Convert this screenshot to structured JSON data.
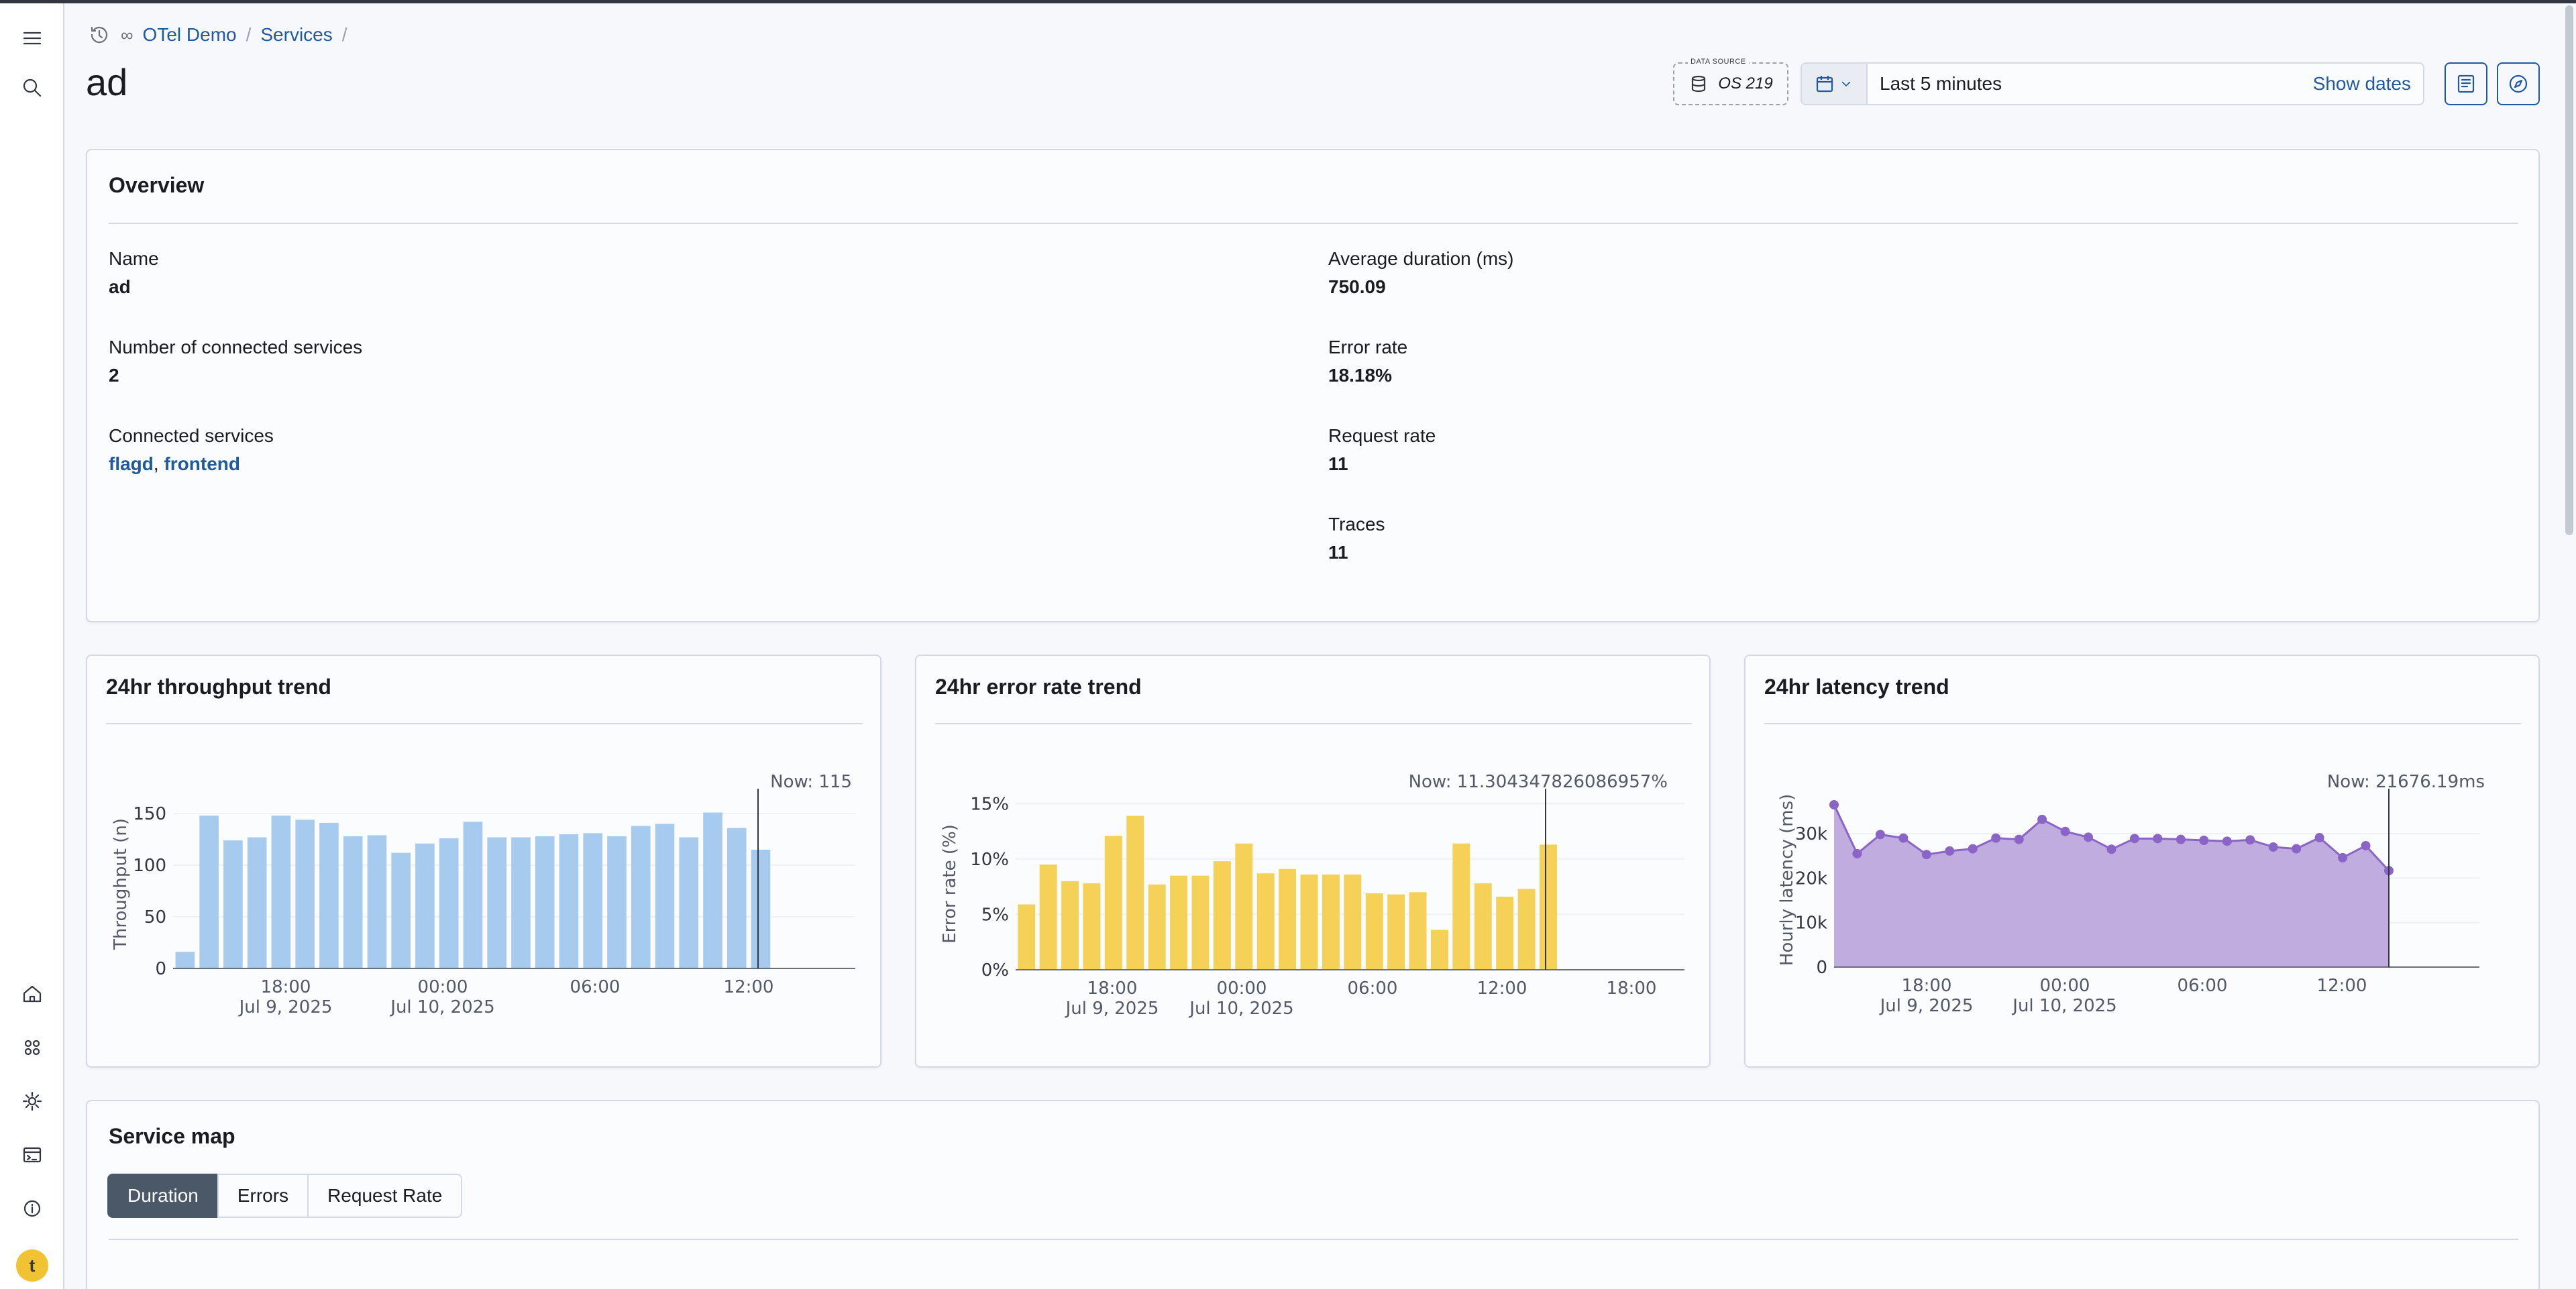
{
  "breadcrumbs": [
    "OTel Demo",
    "Services",
    "/"
  ],
  "page_title": "ad",
  "data_source": {
    "caption": "DATA SOURCE",
    "value": "OS 219"
  },
  "date": {
    "range_label": "Last 5 minutes",
    "show_dates_label": "Show dates"
  },
  "overview": {
    "title": "Overview",
    "left": [
      {
        "label": "Name",
        "value": "ad"
      },
      {
        "label": "Number of connected services",
        "value": "2"
      },
      {
        "label": "Connected services",
        "links": [
          "flagd",
          "frontend"
        ],
        "separator": ", "
      }
    ],
    "right": [
      {
        "label": "Average duration (ms)",
        "value": "750.09"
      },
      {
        "label": "Error rate",
        "value": "18.18%"
      },
      {
        "label": "Request rate",
        "value": "11"
      },
      {
        "label": "Traces",
        "value": "11"
      }
    ]
  },
  "charts": {
    "throughput_title": "24hr throughput trend",
    "error_title": "24hr error rate trend",
    "latency_title": "24hr latency trend"
  },
  "chart_data": [
    {
      "type": "bar",
      "title": "24hr throughput trend",
      "ylabel": "Throughput (n)",
      "ylim": [
        0,
        165
      ],
      "yticks": [
        "0",
        "50",
        "100",
        "150"
      ],
      "xticks": [
        "18:00",
        "00:00",
        "06:00",
        "12:00"
      ],
      "xticks_sub": [
        "Jul 9, 2025",
        "Jul 10, 2025",
        "",
        ""
      ],
      "annotation": "Now: 115",
      "color": "#a7cbee",
      "values": [
        16,
        148,
        124,
        127,
        148,
        144,
        141,
        128,
        129,
        112,
        121,
        126,
        142,
        127,
        127,
        128,
        130,
        131,
        128,
        138,
        140,
        127,
        151,
        136,
        115
      ]
    },
    {
      "type": "bar",
      "title": "24hr error rate trend",
      "ylabel": "Error rate (%)",
      "ylim": [
        0,
        15.5
      ],
      "yticks": [
        "0%",
        "5%",
        "10%",
        "15%"
      ],
      "xticks": [
        "18:00",
        "00:00",
        "06:00",
        "12:00",
        "18:00"
      ],
      "xticks_sub": [
        "Jul 9, 2025",
        "Jul 10, 2025",
        "",
        "",
        ""
      ],
      "annotation": "Now: 11.304347826086957%",
      "color": "#f6d158",
      "values": [
        5.9,
        9.5,
        8.0,
        7.8,
        12.1,
        13.9,
        7.7,
        8.5,
        8.5,
        9.8,
        11.4,
        8.7,
        9.1,
        8.6,
        8.6,
        8.6,
        6.9,
        6.8,
        7.0,
        3.6,
        11.4,
        7.8,
        6.6,
        7.3,
        11.3
      ]
    },
    {
      "type": "area",
      "title": "24hr latency trend",
      "ylabel": "Hourly latency (ms)",
      "ylim": [
        0,
        38000
      ],
      "yticks": [
        "0",
        "10k",
        "20k",
        "30k"
      ],
      "xticks": [
        "18:00",
        "00:00",
        "06:00",
        "12:00"
      ],
      "xticks_sub": [
        "Jul 9, 2025",
        "Jul 10, 2025",
        "",
        ""
      ],
      "annotation": "Now: 21676.19ms",
      "color": "#b9a3dc",
      "line_color": "#8a64c6",
      "values": [
        36500,
        25500,
        29800,
        29000,
        25300,
        26100,
        26600,
        29000,
        28700,
        33200,
        30500,
        29200,
        26500,
        28900,
        28900,
        28700,
        28500,
        28300,
        28600,
        27000,
        26600,
        29100,
        24600,
        27300,
        21676
      ]
    }
  ],
  "service_map": {
    "title": "Service map",
    "tabs": [
      "Duration",
      "Errors",
      "Request Rate"
    ]
  }
}
